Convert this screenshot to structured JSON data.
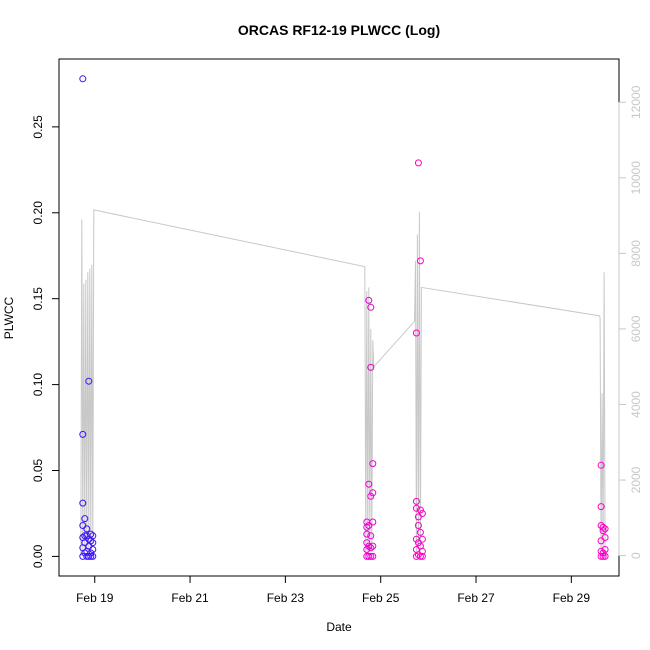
{
  "chart_data": {
    "type": "scatter",
    "title": "ORCAS RF12-19 PLWCC (Log)",
    "xlabel": "Date",
    "ylabel": "PLWCC",
    "x_axis": {
      "range": [
        "2016-02-18T06:00",
        "2016-03-01T00:00"
      ],
      "ticks": [
        {
          "date": "2016-02-19T00:00",
          "label": "Feb 19"
        },
        {
          "date": "2016-02-21T00:00",
          "label": "Feb 21"
        },
        {
          "date": "2016-02-23T00:00",
          "label": "Feb 23"
        },
        {
          "date": "2016-02-25T00:00",
          "label": "Feb 25"
        },
        {
          "date": "2016-02-27T00:00",
          "label": "Feb 27"
        },
        {
          "date": "2016-02-29T00:00",
          "label": "Feb 29"
        }
      ]
    },
    "y_axis": {
      "range": [
        0,
        0.28
      ],
      "ticks": [
        {
          "value": 0.0,
          "label": "0.00"
        },
        {
          "value": 0.05,
          "label": "0.05"
        },
        {
          "value": 0.1,
          "label": "0.10"
        },
        {
          "value": 0.15,
          "label": "0.15"
        },
        {
          "value": 0.2,
          "label": "0.20"
        },
        {
          "value": 0.25,
          "label": "0.25"
        }
      ]
    },
    "y2_axis": {
      "range": [
        0,
        13000
      ],
      "color": "#c8c8c8",
      "ticks": [
        {
          "value": 0,
          "label": "0"
        },
        {
          "value": 2000,
          "label": "2000"
        },
        {
          "value": 4000,
          "label": "4000"
        },
        {
          "value": 6000,
          "label": "6000"
        },
        {
          "value": 8000,
          "label": "8000"
        },
        {
          "value": 10000,
          "label": "10000"
        },
        {
          "value": 12000,
          "label": "12000"
        }
      ]
    },
    "grid": false,
    "legend": "none",
    "colors": {
      "early": "#3a14ff",
      "late": "#ff00c8",
      "line": "#c8c8c8"
    },
    "series": [
      {
        "type": "scatter",
        "points": [
          [
            "2016-02-18T18:00",
            0.278
          ],
          [
            "2016-02-18T18:00",
            0.071
          ],
          [
            "2016-02-18T18:00",
            0.031
          ],
          [
            "2016-02-18T18:00",
            0.018
          ],
          [
            "2016-02-18T18:00",
            0.011
          ],
          [
            "2016-02-18T18:00",
            0.005
          ],
          [
            "2016-02-18T18:00",
            0.0
          ],
          [
            "2016-02-18T19:00",
            0.022
          ],
          [
            "2016-02-18T19:00",
            0.012
          ],
          [
            "2016-02-18T19:00",
            0.008
          ],
          [
            "2016-02-18T19:00",
            0.002
          ],
          [
            "2016-02-18T20:00",
            0.016
          ],
          [
            "2016-02-18T20:00",
            0.012
          ],
          [
            "2016-02-18T20:00",
            0.003
          ],
          [
            "2016-02-18T20:00",
            0.0
          ],
          [
            "2016-02-18T21:00",
            0.102
          ],
          [
            "2016-02-18T21:00",
            0.01
          ],
          [
            "2016-02-18T21:00",
            0.006
          ],
          [
            "2016-02-18T21:00",
            0.0
          ],
          [
            "2016-02-18T22:00",
            0.013
          ],
          [
            "2016-02-18T22:00",
            0.009
          ],
          [
            "2016-02-18T22:00",
            0.002
          ],
          [
            "2016-02-18T22:00",
            0.0
          ],
          [
            "2016-02-18T23:00",
            0.012
          ],
          [
            "2016-02-18T23:00",
            0.008
          ],
          [
            "2016-02-18T23:00",
            0.004
          ],
          [
            "2016-02-18T23:00",
            0.0
          ],
          [
            "2016-02-24T17:00",
            0.02
          ],
          [
            "2016-02-24T17:00",
            0.017
          ],
          [
            "2016-02-24T17:00",
            0.013
          ],
          [
            "2016-02-24T17:00",
            0.008
          ],
          [
            "2016-02-24T17:00",
            0.004
          ],
          [
            "2016-02-24T17:00",
            0.0
          ],
          [
            "2016-02-24T18:00",
            0.149
          ],
          [
            "2016-02-24T18:00",
            0.042
          ],
          [
            "2016-02-24T18:00",
            0.018
          ],
          [
            "2016-02-24T18:00",
            0.006
          ],
          [
            "2016-02-24T18:00",
            0.0
          ],
          [
            "2016-02-24T19:00",
            0.145
          ],
          [
            "2016-02-24T19:00",
            0.11
          ],
          [
            "2016-02-24T19:00",
            0.035
          ],
          [
            "2016-02-24T19:00",
            0.012
          ],
          [
            "2016-02-24T19:00",
            0.005
          ],
          [
            "2016-02-24T19:00",
            0.0
          ],
          [
            "2016-02-24T20:00",
            0.054
          ],
          [
            "2016-02-24T20:00",
            0.037
          ],
          [
            "2016-02-24T20:00",
            0.02
          ],
          [
            "2016-02-24T20:00",
            0.006
          ],
          [
            "2016-02-24T20:00",
            0.0
          ],
          [
            "2016-02-25T18:00",
            0.13
          ],
          [
            "2016-02-25T18:00",
            0.032
          ],
          [
            "2016-02-25T18:00",
            0.028
          ],
          [
            "2016-02-25T18:00",
            0.01
          ],
          [
            "2016-02-25T18:00",
            0.004
          ],
          [
            "2016-02-25T18:00",
            0.0
          ],
          [
            "2016-02-25T19:00",
            0.229
          ],
          [
            "2016-02-25T19:00",
            0.023
          ],
          [
            "2016-02-25T19:00",
            0.018
          ],
          [
            "2016-02-25T19:00",
            0.008
          ],
          [
            "2016-02-25T19:00",
            0.001
          ],
          [
            "2016-02-25T20:00",
            0.172
          ],
          [
            "2016-02-25T20:00",
            0.027
          ],
          [
            "2016-02-25T20:00",
            0.014
          ],
          [
            "2016-02-25T20:00",
            0.006
          ],
          [
            "2016-02-25T20:00",
            0.0
          ],
          [
            "2016-02-25T21:00",
            0.025
          ],
          [
            "2016-02-25T21:00",
            0.01
          ],
          [
            "2016-02-25T21:00",
            0.003
          ],
          [
            "2016-02-25T21:00",
            0.0
          ],
          [
            "2016-02-29T15:00",
            0.053
          ],
          [
            "2016-02-29T15:00",
            0.029
          ],
          [
            "2016-02-29T15:00",
            0.018
          ],
          [
            "2016-02-29T15:00",
            0.009
          ],
          [
            "2016-02-29T15:00",
            0.003
          ],
          [
            "2016-02-29T15:00",
            0.0
          ],
          [
            "2016-02-29T16:00",
            0.017
          ],
          [
            "2016-02-29T16:00",
            0.015
          ],
          [
            "2016-02-29T16:00",
            0.002
          ],
          [
            "2016-02-29T16:00",
            0.0
          ],
          [
            "2016-02-29T17:00",
            0.016
          ],
          [
            "2016-02-29T17:00",
            0.011
          ],
          [
            "2016-02-29T17:00",
            0.004
          ],
          [
            "2016-02-29T17:00",
            0.0
          ]
        ]
      },
      {
        "type": "line",
        "axis": "y2",
        "points": [
          [
            "2016-02-18T17:00",
            0
          ],
          [
            "2016-02-18T17:30",
            8900
          ],
          [
            "2016-02-18T18:00",
            0
          ],
          [
            "2016-02-18T18:30",
            7200
          ],
          [
            "2016-02-18T19:00",
            200
          ],
          [
            "2016-02-18T19:30",
            7300
          ],
          [
            "2016-02-18T20:00",
            100
          ],
          [
            "2016-02-18T20:30",
            7500
          ],
          [
            "2016-02-18T21:00",
            200
          ],
          [
            "2016-02-18T21:30",
            7600
          ],
          [
            "2016-02-18T22:00",
            100
          ],
          [
            "2016-02-18T22:30",
            7700
          ],
          [
            "2016-02-18T23:00",
            300
          ],
          [
            "2016-02-18T23:30",
            9150
          ],
          [
            "2016-02-24T16:00",
            7650
          ],
          [
            "2016-02-24T16:30",
            0
          ],
          [
            "2016-02-24T17:00",
            7000
          ],
          [
            "2016-02-24T17:30",
            100
          ],
          [
            "2016-02-24T18:00",
            7100
          ],
          [
            "2016-02-24T18:30",
            200
          ],
          [
            "2016-02-24T19:00",
            6000
          ],
          [
            "2016-02-24T19:30",
            100
          ],
          [
            "2016-02-24T20:00",
            5700
          ],
          [
            "2016-02-24T20:30",
            5000
          ],
          [
            "2016-02-25T17:00",
            6200
          ],
          [
            "2016-02-25T17:30",
            7800
          ],
          [
            "2016-02-25T18:00",
            100
          ],
          [
            "2016-02-25T18:30",
            8500
          ],
          [
            "2016-02-25T19:00",
            200
          ],
          [
            "2016-02-25T19:30",
            9100
          ],
          [
            "2016-02-25T20:00",
            100
          ],
          [
            "2016-02-25T20:30",
            7100
          ],
          [
            "2016-02-29T14:00",
            6350
          ],
          [
            "2016-02-29T14:30",
            6300
          ],
          [
            "2016-02-29T15:00",
            0
          ],
          [
            "2016-02-29T15:30",
            4300
          ],
          [
            "2016-02-29T16:00",
            0
          ],
          [
            "2016-02-29T16:30",
            7500
          ],
          [
            "2016-02-29T17:00",
            0
          ]
        ]
      }
    ]
  }
}
